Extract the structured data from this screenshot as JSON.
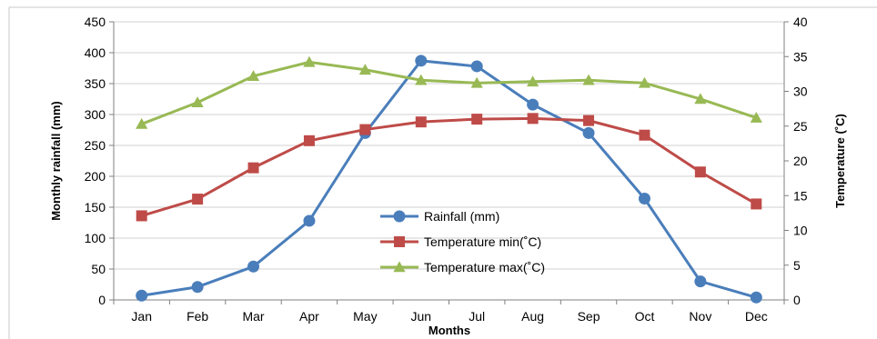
{
  "chart_data": {
    "type": "line",
    "title": "",
    "xlabel": "Months",
    "ylabel": "Monthly rainfall (mm)",
    "y2label": "Temperature (˚C)",
    "categories": [
      "Jan",
      "Feb",
      "Mar",
      "Apr",
      "May",
      "Jun",
      "Jul",
      "Aug",
      "Sep",
      "Oct",
      "Nov",
      "Dec"
    ],
    "ylim": [
      0,
      450
    ],
    "y_ticks": [
      0,
      50,
      100,
      150,
      200,
      250,
      300,
      350,
      400,
      450
    ],
    "y2lim": [
      0,
      40
    ],
    "y2_ticks": [
      0,
      5,
      10,
      15,
      20,
      25,
      30,
      35,
      40
    ],
    "grid": true,
    "legend_position": "center",
    "series": [
      {
        "name": "Rainfall (mm)",
        "axis": "left",
        "marker": "circle",
        "color": "#4a7ebb",
        "values": [
          7,
          21,
          54,
          128,
          270,
          387,
          378,
          316,
          270,
          164,
          30,
          4
        ]
      },
      {
        "name": "Temperature min(˚C)",
        "axis": "right",
        "marker": "square",
        "color": "#be4b48",
        "values": [
          12.1,
          14.5,
          19.0,
          22.9,
          24.5,
          25.6,
          26.0,
          26.1,
          25.8,
          23.7,
          18.4,
          13.8
        ]
      },
      {
        "name": "Temperature max(˚C)",
        "axis": "right",
        "marker": "triangle",
        "color": "#98b954",
        "values": [
          25.3,
          28.4,
          32.2,
          34.2,
          33.1,
          31.6,
          31.2,
          31.4,
          31.6,
          31.2,
          28.9,
          26.2
        ]
      }
    ]
  }
}
